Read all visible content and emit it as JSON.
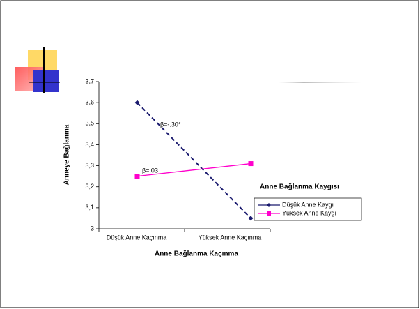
{
  "chart_data": {
    "type": "line",
    "categories": [
      "Düşük Anne Kaçınma",
      "Yüksek Anne Kaçınma"
    ],
    "series": [
      {
        "name": "Düşük Anne Kaygı",
        "color": "#1a1a6e",
        "dashed": true,
        "marker": "diamond",
        "values": [
          3.6,
          3.05
        ]
      },
      {
        "name": "Yüksek Anne Kaygı",
        "color": "#ff00cc",
        "dashed": false,
        "marker": "square",
        "values": [
          3.25,
          3.31
        ]
      }
    ],
    "ylim": [
      3,
      3.7
    ],
    "yticks": [
      3,
      {
        "value": 3.1,
        "label": "3,1"
      },
      {
        "value": 3.2,
        "label": "3,2"
      },
      {
        "value": 3.3,
        "label": "3,3"
      },
      {
        "value": 3.4,
        "label": "3,4"
      },
      {
        "value": 3.5,
        "label": "3,5"
      },
      {
        "value": 3.6,
        "label": "3,6"
      },
      {
        "value": 3.7,
        "label": "3,7"
      }
    ],
    "x_label": "Anne Bağlanma Kaçınma",
    "y_label": "Anneye Bağlanma",
    "legend_title": "Anne Bağlanma Kaygısı",
    "annotations": [
      "β=-.30*",
      "β=.03"
    ],
    "grid": false
  }
}
